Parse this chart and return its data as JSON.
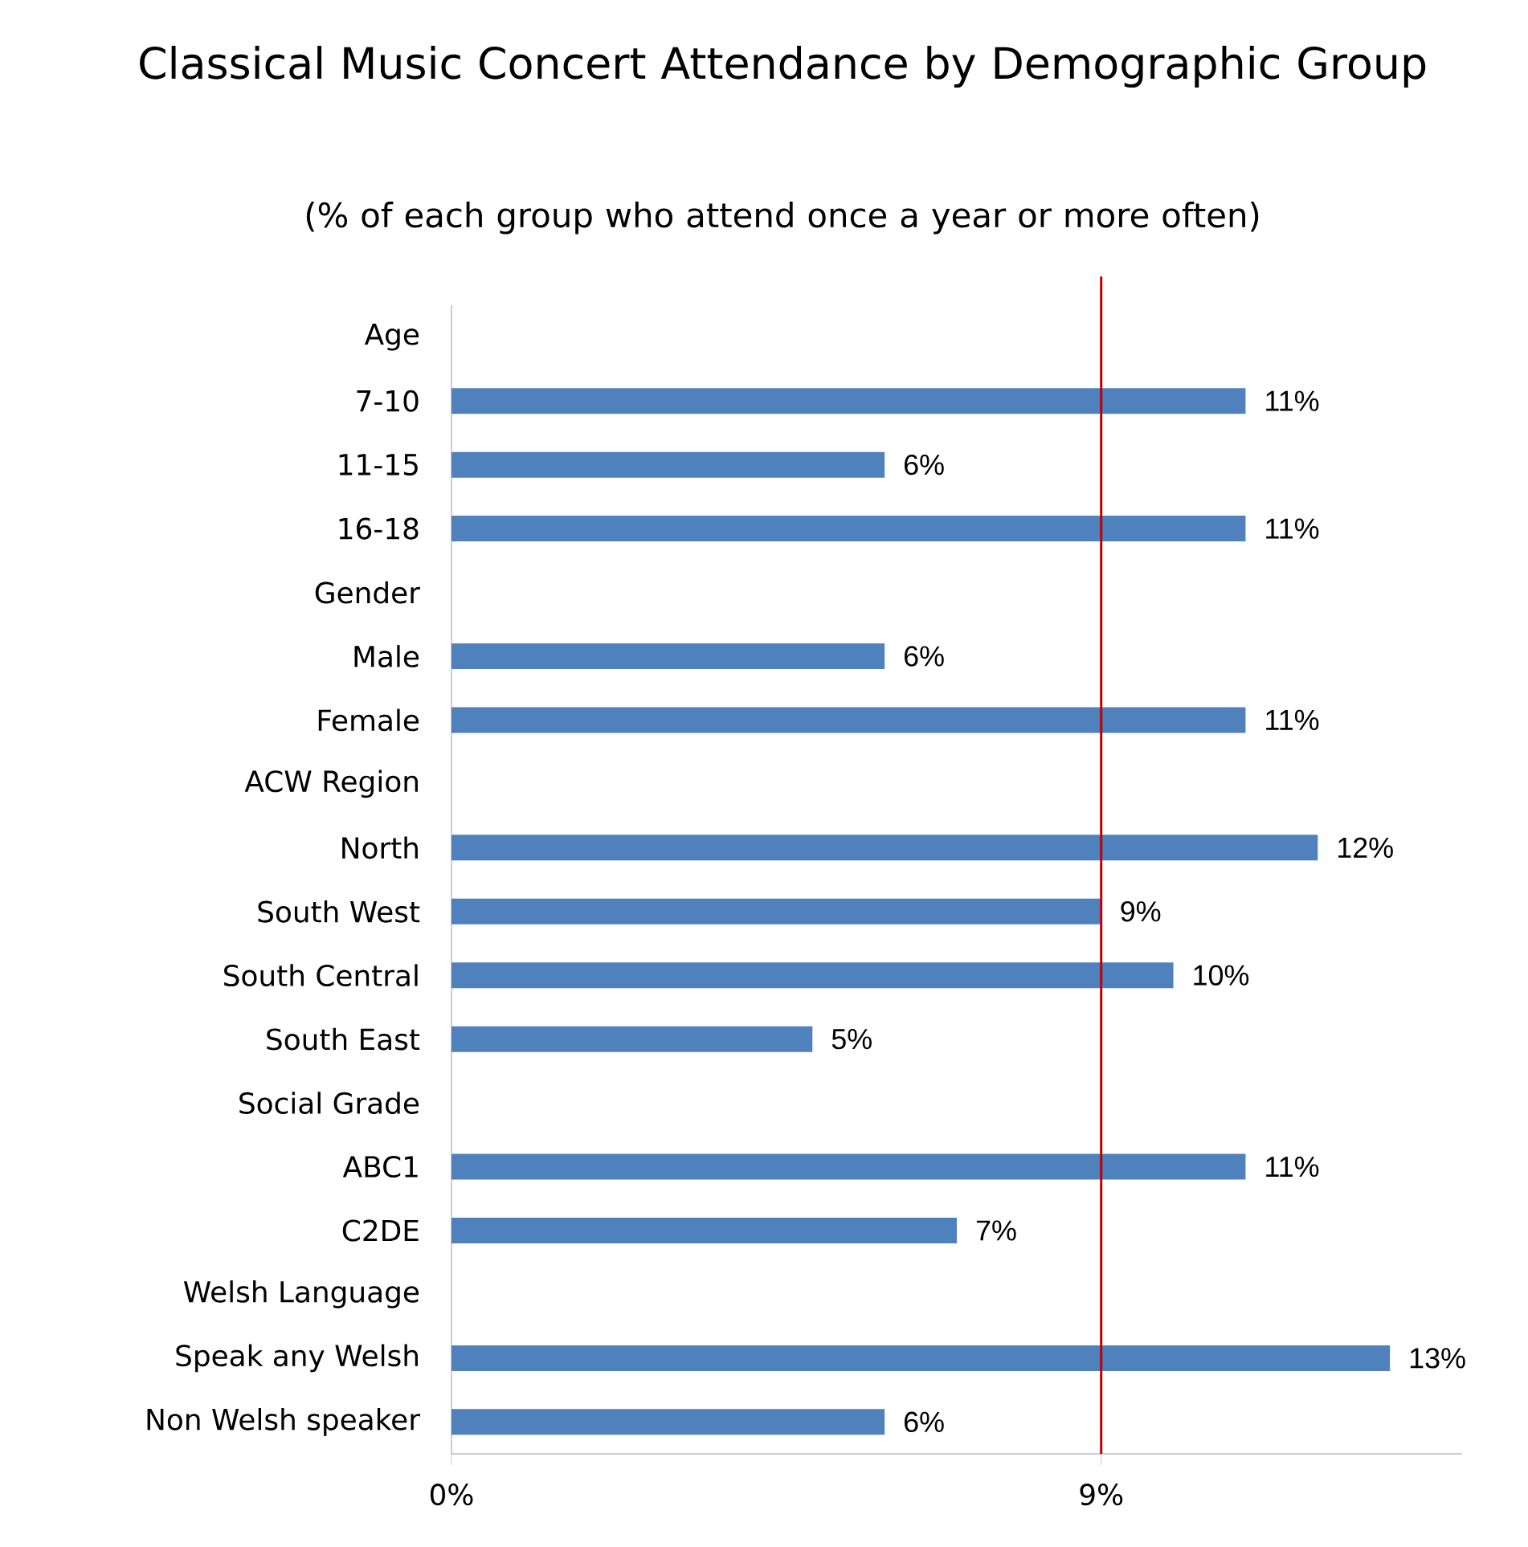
{
  "chart_data": {
    "type": "bar",
    "orientation": "horizontal",
    "title": "Classical Music Concert Attendance by Demographic Group",
    "subtitle": "(% of each group who attend once a year or more often)",
    "categories": [
      "Age",
      "7-10",
      "11-15",
      "16-18",
      "Gender",
      "Male",
      "Female",
      "ACW Region",
      "North",
      "South West",
      "South Central",
      "South East",
      "Social Grade",
      "ABC1",
      "C2DE",
      "Welsh Language",
      "Speak any Welsh",
      "Non Welsh speaker"
    ],
    "values": [
      null,
      11,
      6,
      11,
      null,
      6,
      11,
      null,
      12,
      9,
      10,
      5,
      null,
      11,
      7,
      null,
      13,
      6
    ],
    "value_labels": [
      null,
      "11%",
      "6%",
      "11%",
      null,
      "6%",
      "11%",
      null,
      "12%",
      "9%",
      "10%",
      "5%",
      null,
      "11%",
      "7%",
      null,
      "13%",
      "6%"
    ],
    "color": "#4f81bd",
    "xlim": [
      0,
      14
    ],
    "xticks": [
      {
        "value": 0,
        "label": "0%"
      },
      {
        "value": 9,
        "label": "9%"
      }
    ],
    "ref_lines": [
      {
        "axis": "x",
        "value": 9,
        "color": "#c00000"
      }
    ]
  }
}
